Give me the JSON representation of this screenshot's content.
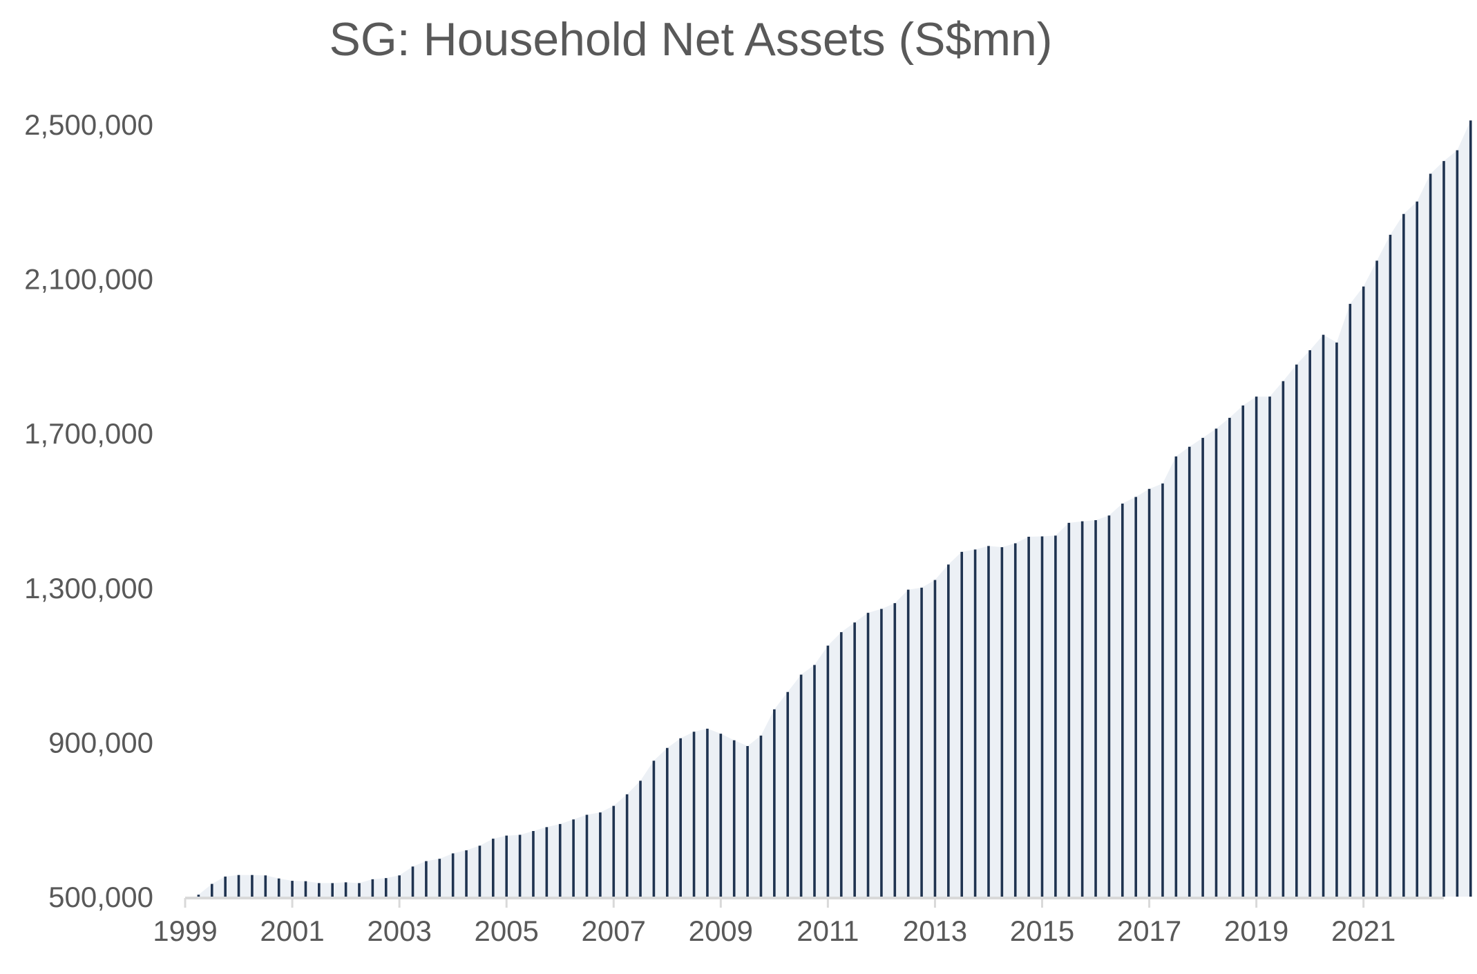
{
  "chart_data": {
    "type": "area",
    "title": "SG: Household Net Assets (S$mn)",
    "xlabel": "",
    "ylabel": "",
    "ylim": [
      500000,
      2500000
    ],
    "yticks": [
      500000,
      900000,
      1300000,
      1700000,
      2100000,
      2500000
    ],
    "ytick_labels": [
      "500,000",
      "900,000",
      "1,300,000",
      "1,700,000",
      "2,100,000",
      "2,500,000"
    ],
    "xlim": [
      1999.0,
      2022.5
    ],
    "xticks": [
      1999,
      2001,
      2003,
      2005,
      2007,
      2009,
      2011,
      2013,
      2015,
      2017,
      2019,
      2021
    ],
    "xtick_labels": [
      "1999",
      "2001",
      "2003",
      "2005",
      "2007",
      "2009",
      "2011",
      "2013",
      "2015",
      "2017",
      "2019",
      "2021"
    ],
    "grid": false,
    "legend": "none",
    "colors": {
      "stem": "#1f3350",
      "fill": "#dde3ec",
      "axis": "#d9d9d9",
      "text": "#595959"
    },
    "start": "1999-Q2",
    "frequency": "quarterly",
    "values": [
      505000,
      533000,
      552000,
      556000,
      556000,
      555000,
      547000,
      541000,
      540000,
      535000,
      535000,
      537000,
      535000,
      545000,
      548000,
      555000,
      578000,
      592000,
      598000,
      612000,
      620000,
      632000,
      650000,
      658000,
      660000,
      670000,
      680000,
      688000,
      700000,
      712000,
      718000,
      735000,
      765000,
      800000,
      852000,
      885000,
      910000,
      927000,
      935000,
      922000,
      905000,
      890000,
      917000,
      985000,
      1030000,
      1075000,
      1100000,
      1150000,
      1185000,
      1210000,
      1235000,
      1245000,
      1260000,
      1295000,
      1300000,
      1320000,
      1360000,
      1393000,
      1399000,
      1408000,
      1405000,
      1415000,
      1432000,
      1433000,
      1435000,
      1468000,
      1472000,
      1475000,
      1487000,
      1518000,
      1535000,
      1556000,
      1570000,
      1640000,
      1665000,
      1688000,
      1712000,
      1740000,
      1772000,
      1795000,
      1795000,
      1835000,
      1878000,
      1915000,
      1955000,
      1935000,
      2035000,
      2080000,
      2147000,
      2214000,
      2268000,
      2300000,
      2372000,
      2405000,
      2433000,
      2510000
    ]
  }
}
